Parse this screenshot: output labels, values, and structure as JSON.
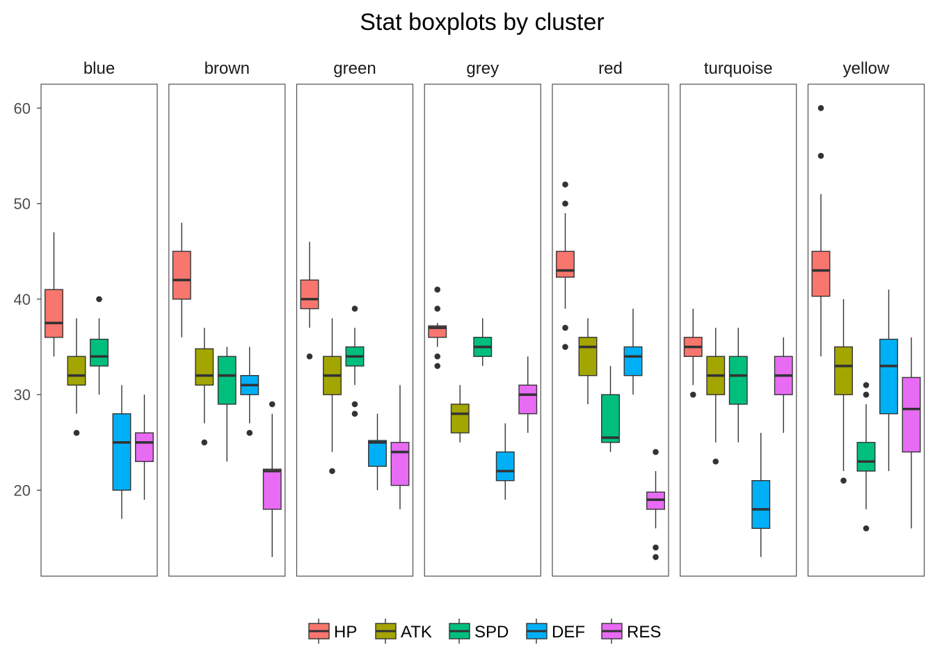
{
  "chart_data": {
    "type": "boxplot",
    "title": "Stat boxplots by cluster",
    "xlabel": "",
    "ylabel": "",
    "ylim": [
      11,
      62.5
    ],
    "yticks": [
      20,
      30,
      40,
      50,
      60
    ],
    "grid": false,
    "legend_position": "bottom",
    "series": [
      {
        "name": "HP",
        "color": "#F8766D"
      },
      {
        "name": "ATK",
        "color": "#A3A500"
      },
      {
        "name": "SPD",
        "color": "#00BF7D"
      },
      {
        "name": "DEF",
        "color": "#00B0F6"
      },
      {
        "name": "RES",
        "color": "#E76BF3"
      }
    ],
    "panels": [
      {
        "name": "blue",
        "boxes": [
          {
            "series": "HP",
            "lower_whisker": 34,
            "q1": 36,
            "median": 37.5,
            "q3": 41,
            "upper_whisker": 47,
            "outliers": []
          },
          {
            "series": "ATK",
            "lower_whisker": 28,
            "q1": 31,
            "median": 32,
            "q3": 34,
            "upper_whisker": 38,
            "outliers": [
              26
            ]
          },
          {
            "series": "SPD",
            "lower_whisker": 30,
            "q1": 33,
            "median": 34,
            "q3": 35.8,
            "upper_whisker": 38,
            "outliers": [
              40
            ]
          },
          {
            "series": "DEF",
            "lower_whisker": 17,
            "q1": 20,
            "median": 25,
            "q3": 28,
            "upper_whisker": 31,
            "outliers": []
          },
          {
            "series": "RES",
            "lower_whisker": 19,
            "q1": 23,
            "median": 25,
            "q3": 26,
            "upper_whisker": 30,
            "outliers": []
          }
        ]
      },
      {
        "name": "brown",
        "boxes": [
          {
            "series": "HP",
            "lower_whisker": 36,
            "q1": 40,
            "median": 42,
            "q3": 45,
            "upper_whisker": 48,
            "outliers": []
          },
          {
            "series": "ATK",
            "lower_whisker": 27,
            "q1": 31,
            "median": 32,
            "q3": 34.8,
            "upper_whisker": 37,
            "outliers": [
              25
            ]
          },
          {
            "series": "SPD",
            "lower_whisker": 23,
            "q1": 29,
            "median": 32,
            "q3": 34,
            "upper_whisker": 35,
            "outliers": []
          },
          {
            "series": "DEF",
            "lower_whisker": 27,
            "q1": 30,
            "median": 31,
            "q3": 32,
            "upper_whisker": 35,
            "outliers": [
              26
            ]
          },
          {
            "series": "RES",
            "lower_whisker": 13,
            "q1": 18,
            "median": 22,
            "q3": 22.2,
            "upper_whisker": 28,
            "outliers": [
              29
            ]
          }
        ]
      },
      {
        "name": "green",
        "boxes": [
          {
            "series": "HP",
            "lower_whisker": 37,
            "q1": 39,
            "median": 40,
            "q3": 42,
            "upper_whisker": 46,
            "outliers": [
              34
            ]
          },
          {
            "series": "ATK",
            "lower_whisker": 24,
            "q1": 30,
            "median": 32,
            "q3": 34,
            "upper_whisker": 38,
            "outliers": [
              22
            ]
          },
          {
            "series": "SPD",
            "lower_whisker": 31,
            "q1": 33,
            "median": 34,
            "q3": 35,
            "upper_whisker": 37,
            "outliers": [
              39,
              29,
              28
            ]
          },
          {
            "series": "DEF",
            "lower_whisker": 20,
            "q1": 22.5,
            "median": 25,
            "q3": 25.2,
            "upper_whisker": 28,
            "outliers": []
          },
          {
            "series": "RES",
            "lower_whisker": 18,
            "q1": 20.5,
            "median": 24,
            "q3": 25,
            "upper_whisker": 31,
            "outliers": []
          }
        ]
      },
      {
        "name": "grey",
        "boxes": [
          {
            "series": "HP",
            "lower_whisker": 35,
            "q1": 36,
            "median": 37,
            "q3": 37.2,
            "upper_whisker": 37.5,
            "outliers": [
              41,
              39,
              34,
              33
            ]
          },
          {
            "series": "ATK",
            "lower_whisker": 25,
            "q1": 26,
            "median": 28,
            "q3": 29,
            "upper_whisker": 31,
            "outliers": []
          },
          {
            "series": "SPD",
            "lower_whisker": 33,
            "q1": 34,
            "median": 35,
            "q3": 36,
            "upper_whisker": 38,
            "outliers": []
          },
          {
            "series": "DEF",
            "lower_whisker": 19,
            "q1": 21,
            "median": 22,
            "q3": 24,
            "upper_whisker": 27,
            "outliers": []
          },
          {
            "series": "RES",
            "lower_whisker": 26,
            "q1": 28,
            "median": 30,
            "q3": 31,
            "upper_whisker": 34,
            "outliers": []
          }
        ]
      },
      {
        "name": "red",
        "boxes": [
          {
            "series": "HP",
            "lower_whisker": 39,
            "q1": 42.3,
            "median": 43,
            "q3": 45,
            "upper_whisker": 49,
            "outliers": [
              52,
              50,
              37,
              35
            ]
          },
          {
            "series": "ATK",
            "lower_whisker": 29,
            "q1": 32,
            "median": 35,
            "q3": 36,
            "upper_whisker": 38,
            "outliers": []
          },
          {
            "series": "SPD",
            "lower_whisker": 24,
            "q1": 25,
            "median": 25.5,
            "q3": 30,
            "upper_whisker": 33,
            "outliers": []
          },
          {
            "series": "DEF",
            "lower_whisker": 30,
            "q1": 32,
            "median": 34,
            "q3": 35,
            "upper_whisker": 39,
            "outliers": []
          },
          {
            "series": "RES",
            "lower_whisker": 16,
            "q1": 18,
            "median": 19,
            "q3": 19.8,
            "upper_whisker": 22,
            "outliers": [
              24,
              14,
              13
            ]
          }
        ]
      },
      {
        "name": "turquoise",
        "boxes": [
          {
            "series": "HP",
            "lower_whisker": 31,
            "q1": 34,
            "median": 35,
            "q3": 36,
            "upper_whisker": 39,
            "outliers": [
              30
            ]
          },
          {
            "series": "ATK",
            "lower_whisker": 25,
            "q1": 30,
            "median": 32,
            "q3": 34,
            "upper_whisker": 37,
            "outliers": [
              23
            ]
          },
          {
            "series": "SPD",
            "lower_whisker": 25,
            "q1": 29,
            "median": 32,
            "q3": 34,
            "upper_whisker": 37,
            "outliers": []
          },
          {
            "series": "DEF",
            "lower_whisker": 13,
            "q1": 16,
            "median": 18,
            "q3": 21,
            "upper_whisker": 26,
            "outliers": []
          },
          {
            "series": "RES",
            "lower_whisker": 26,
            "q1": 30,
            "median": 32,
            "q3": 34,
            "upper_whisker": 36,
            "outliers": []
          }
        ]
      },
      {
        "name": "yellow",
        "boxes": [
          {
            "series": "HP",
            "lower_whisker": 34,
            "q1": 40.3,
            "median": 43,
            "q3": 45,
            "upper_whisker": 51,
            "outliers": [
              60,
              55
            ]
          },
          {
            "series": "ATK",
            "lower_whisker": 22,
            "q1": 30,
            "median": 33,
            "q3": 35,
            "upper_whisker": 40,
            "outliers": [
              21
            ]
          },
          {
            "series": "SPD",
            "lower_whisker": 18,
            "q1": 22,
            "median": 23,
            "q3": 25,
            "upper_whisker": 29,
            "outliers": [
              31,
              30,
              16
            ]
          },
          {
            "series": "DEF",
            "lower_whisker": 22,
            "q1": 28,
            "median": 33,
            "q3": 35.8,
            "upper_whisker": 41,
            "outliers": []
          },
          {
            "series": "RES",
            "lower_whisker": 16,
            "q1": 24,
            "median": 28.5,
            "q3": 31.8,
            "upper_whisker": 36,
            "outliers": []
          }
        ]
      }
    ]
  }
}
